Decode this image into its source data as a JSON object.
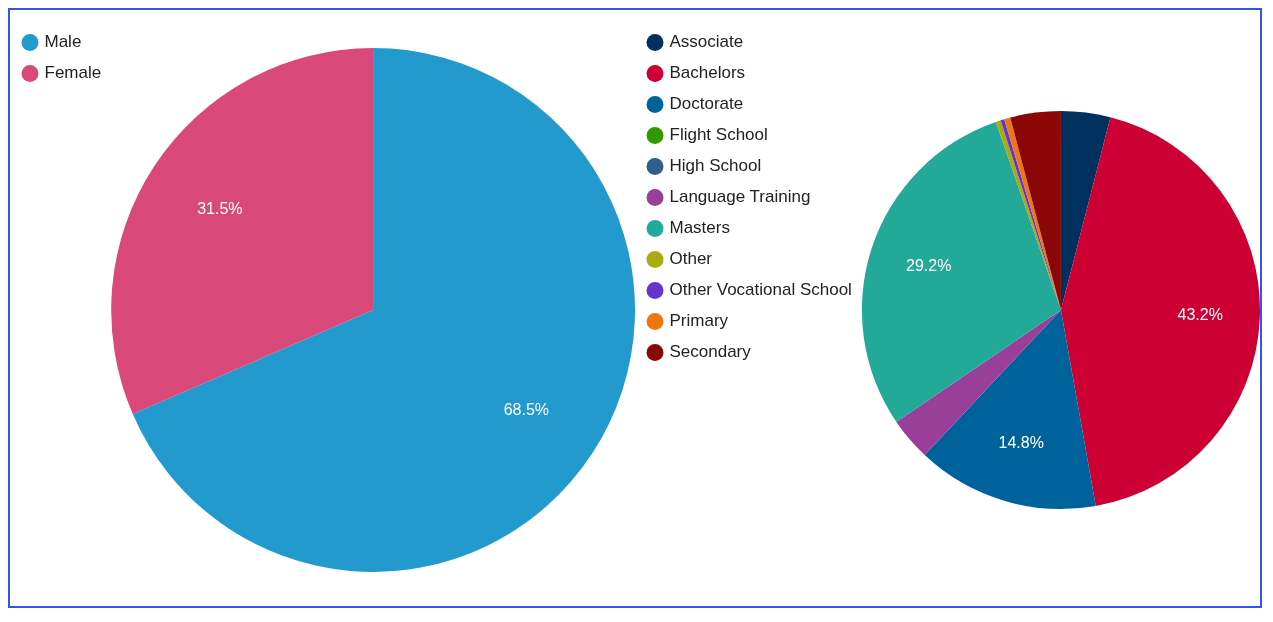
{
  "chart_data": [
    {
      "type": "pie",
      "categories": [
        "Male",
        "Female"
      ],
      "values": [
        68.5,
        31.5
      ],
      "colors": [
        "#229acd",
        "#d9497a"
      ],
      "value_labels": [
        "68.5%",
        "31.5%"
      ],
      "legend": "top left"
    },
    {
      "type": "pie",
      "categories": [
        "Associate",
        "Bachelors",
        "Doctorate",
        "Flight School",
        "High School",
        "Language Training",
        "Masters",
        "Other",
        "Other Vocational School",
        "Primary",
        "Secondary"
      ],
      "values": [
        4.0,
        43.2,
        14.8,
        0,
        0,
        3.5,
        29.2,
        0.4,
        0.3,
        0.5,
        4.1
      ],
      "colors": [
        "#00305e",
        "#cc0033",
        "#00629a",
        "#339900",
        "#2e5e8e",
        "#993f9a",
        "#22a997",
        "#aaaa11",
        "#6633cc",
        "#ee7711",
        "#8b0707"
      ],
      "value_labels": [
        null,
        "43.2%",
        "14.8%",
        null,
        null,
        null,
        "29.2%",
        null,
        null,
        null,
        null
      ],
      "legend": "top left"
    }
  ]
}
